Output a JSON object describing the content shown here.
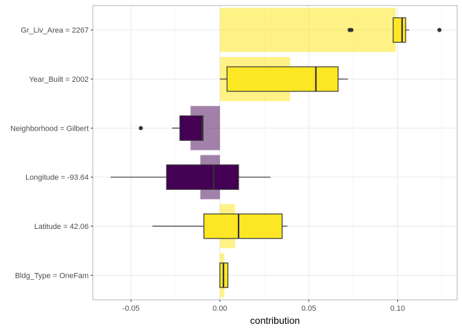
{
  "chart_data": {
    "type": "box",
    "xlabel": "contribution",
    "ylabel": "",
    "xlim": [
      -0.0715,
      0.1335
    ],
    "xticks": [
      -0.05,
      0.0,
      0.05,
      0.1
    ],
    "xtick_labels": [
      "-0.05",
      "0.00",
      "0.05",
      "0.10"
    ],
    "grid": true,
    "legend": "none",
    "colors": {
      "positive": "#fde725",
      "negative": "#440154",
      "grid_major": "#e5e5e5",
      "grid_minor": "#f2f2f2",
      "border": "#b3b3b3",
      "outline": "#333333"
    },
    "features": [
      {
        "label": "Gr_Liv_Area = 2267",
        "mean": 0.099,
        "box": {
          "whisker_low": 0.0975,
          "q1": 0.0975,
          "median": 0.1025,
          "q3": 0.1045,
          "whisker_high": 0.1065
        },
        "outliers": [
          0.073,
          0.074,
          0.1235
        ]
      },
      {
        "label": "Year_Built = 2002",
        "mean": 0.0395,
        "box": {
          "whisker_low": 0.0,
          "q1": 0.004,
          "median": 0.054,
          "q3": 0.0665,
          "whisker_high": 0.072
        },
        "outliers": []
      },
      {
        "label": "Neighborhood = Gilbert",
        "mean": -0.0165,
        "box": {
          "whisker_low": -0.027,
          "q1": -0.0225,
          "median": -0.01,
          "q3": -0.0095,
          "whisker_high": -0.0095
        },
        "outliers": [
          -0.0445
        ]
      },
      {
        "label": "Longitude = -93.64",
        "mean": -0.011,
        "box": {
          "whisker_low": -0.0615,
          "q1": -0.03,
          "median": -0.0035,
          "q3": 0.0105,
          "whisker_high": 0.0285
        },
        "outliers": []
      },
      {
        "label": "Latitude = 42.06",
        "mean": 0.0085,
        "box": {
          "whisker_low": -0.038,
          "q1": -0.009,
          "median": 0.0105,
          "q3": 0.035,
          "whisker_high": 0.038
        },
        "outliers": []
      },
      {
        "label": "Bldg_Type = OneFam",
        "mean": 0.0025,
        "box": {
          "whisker_low": 0.0,
          "q1": 0.0,
          "median": 0.002,
          "q3": 0.0045,
          "whisker_high": 0.0045
        },
        "outliers": []
      }
    ]
  }
}
